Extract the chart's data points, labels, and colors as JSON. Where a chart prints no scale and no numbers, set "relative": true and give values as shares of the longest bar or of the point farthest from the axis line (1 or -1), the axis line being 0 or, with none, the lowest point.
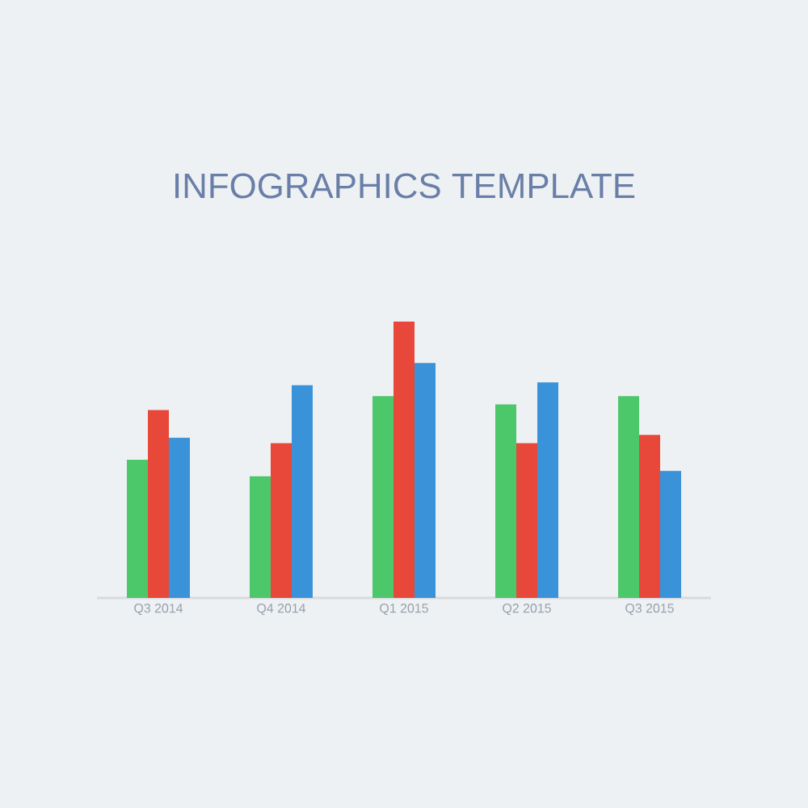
{
  "chart_data": {
    "type": "bar",
    "title": "INFOGRAPHICS   TEMPLATE",
    "relative": true,
    "categories": [
      "Q3 2014",
      "Q4 2014",
      "Q1 2015",
      "Q2 2015",
      "Q3 2015"
    ],
    "series": [
      {
        "color": "#4cc76a",
        "values": [
          0.5,
          0.44,
          0.73,
          0.7,
          0.73
        ]
      },
      {
        "color": "#e8483a",
        "values": [
          0.68,
          0.56,
          1,
          0.56,
          0.59
        ]
      },
      {
        "color": "#3a93d9",
        "values": [
          0.58,
          0.77,
          0.85,
          0.78,
          0.46
        ]
      }
    ]
  }
}
